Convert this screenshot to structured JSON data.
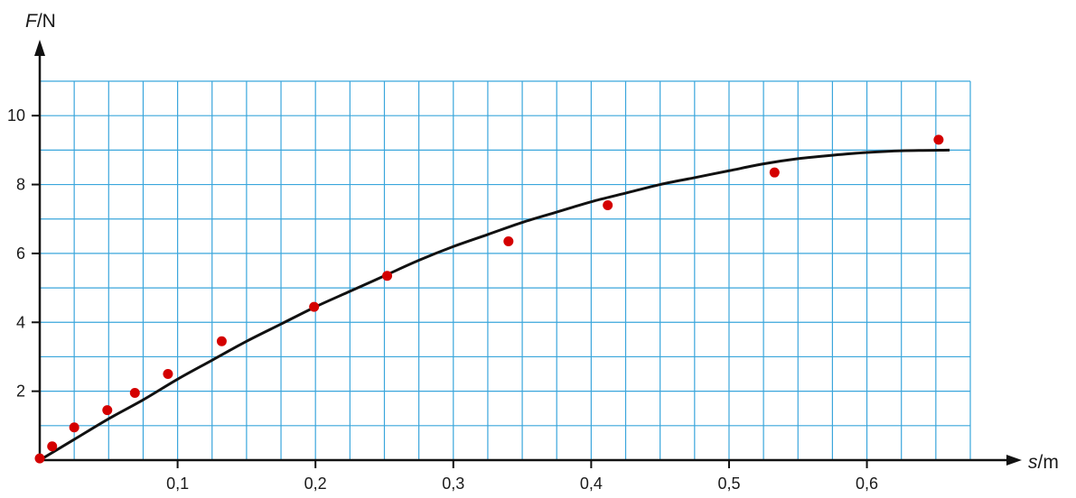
{
  "chart_data": {
    "type": "scatter",
    "xlabel": {
      "var": "s",
      "unit": "/m"
    },
    "ylabel": {
      "var": "F",
      "unit": "/N"
    },
    "xlim": [
      0,
      0.675
    ],
    "ylim": [
      0,
      11
    ],
    "x_ticks": [
      0.1,
      0.2,
      0.3,
      0.4,
      0.5,
      0.6
    ],
    "x_tick_labels": [
      "0,1",
      "0,2",
      "0,3",
      "0,4",
      "0,5",
      "0,6"
    ],
    "y_ticks": [
      2,
      4,
      6,
      8,
      10
    ],
    "y_tick_labels": [
      "2",
      "4",
      "6",
      "8",
      "10"
    ],
    "grid": true,
    "grid_step_x": 0.025,
    "grid_step_y": 1,
    "colors": {
      "grid": "#3aa6dc",
      "points": "#d40000",
      "curve": "#111111",
      "axis": "#111111"
    },
    "series": [
      {
        "kind": "points",
        "points": [
          [
            0.0,
            0.05
          ],
          [
            0.009,
            0.4
          ],
          [
            0.025,
            0.95
          ],
          [
            0.049,
            1.45
          ],
          [
            0.069,
            1.95
          ],
          [
            0.093,
            2.5
          ],
          [
            0.132,
            3.45
          ],
          [
            0.199,
            4.45
          ],
          [
            0.252,
            5.35
          ],
          [
            0.34,
            6.35
          ],
          [
            0.412,
            7.4
          ],
          [
            0.533,
            8.35
          ],
          [
            0.652,
            9.3
          ]
        ]
      },
      {
        "kind": "curve",
        "points": [
          [
            0.0,
            0.0
          ],
          [
            0.025,
            0.6
          ],
          [
            0.05,
            1.2
          ],
          [
            0.075,
            1.75
          ],
          [
            0.1,
            2.35
          ],
          [
            0.125,
            2.9
          ],
          [
            0.15,
            3.45
          ],
          [
            0.175,
            3.95
          ],
          [
            0.2,
            4.45
          ],
          [
            0.225,
            4.9
          ],
          [
            0.25,
            5.35
          ],
          [
            0.275,
            5.8
          ],
          [
            0.3,
            6.2
          ],
          [
            0.325,
            6.55
          ],
          [
            0.35,
            6.9
          ],
          [
            0.375,
            7.2
          ],
          [
            0.4,
            7.5
          ],
          [
            0.425,
            7.75
          ],
          [
            0.45,
            8.0
          ],
          [
            0.475,
            8.2
          ],
          [
            0.5,
            8.4
          ],
          [
            0.525,
            8.6
          ],
          [
            0.55,
            8.75
          ],
          [
            0.575,
            8.85
          ],
          [
            0.6,
            8.93
          ],
          [
            0.625,
            8.98
          ],
          [
            0.66,
            9.0
          ]
        ]
      }
    ]
  }
}
